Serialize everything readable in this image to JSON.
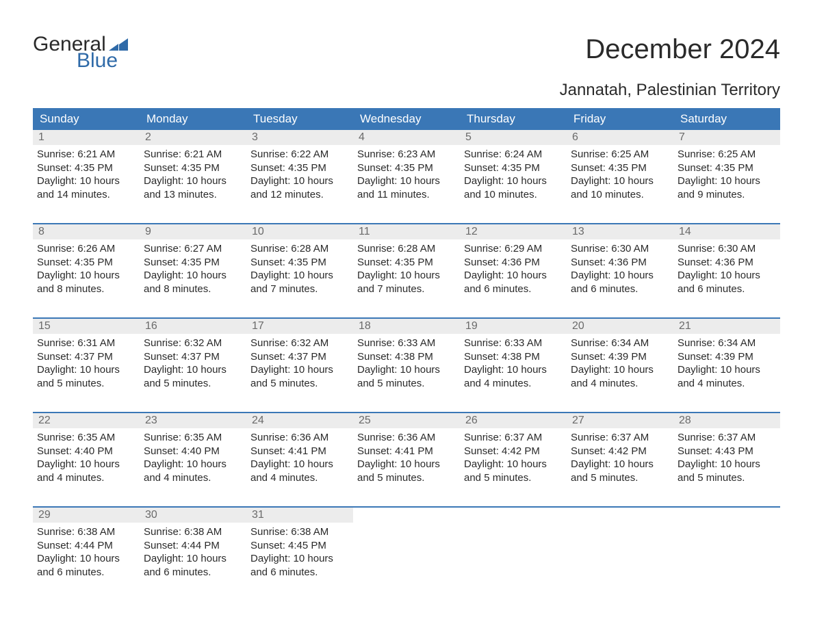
{
  "logo": {
    "line1": "General",
    "line2": "Blue",
    "flag_color": "#2f6aa8"
  },
  "title": "December 2024",
  "location": "Jannatah, Palestinian Territory",
  "colors": {
    "header_bg": "#3a77b6",
    "header_text": "#ffffff",
    "daynum_bg": "#ececec",
    "daynum_text": "#6a6a6a",
    "body_text": "#2a2a2a",
    "week_border": "#3a77b6"
  },
  "day_names": [
    "Sunday",
    "Monday",
    "Tuesday",
    "Wednesday",
    "Thursday",
    "Friday",
    "Saturday"
  ],
  "weeks": [
    [
      {
        "n": "1",
        "sr": "6:21 AM",
        "ss": "4:35 PM",
        "dl": "10 hours and 14 minutes."
      },
      {
        "n": "2",
        "sr": "6:21 AM",
        "ss": "4:35 PM",
        "dl": "10 hours and 13 minutes."
      },
      {
        "n": "3",
        "sr": "6:22 AM",
        "ss": "4:35 PM",
        "dl": "10 hours and 12 minutes."
      },
      {
        "n": "4",
        "sr": "6:23 AM",
        "ss": "4:35 PM",
        "dl": "10 hours and 11 minutes."
      },
      {
        "n": "5",
        "sr": "6:24 AM",
        "ss": "4:35 PM",
        "dl": "10 hours and 10 minutes."
      },
      {
        "n": "6",
        "sr": "6:25 AM",
        "ss": "4:35 PM",
        "dl": "10 hours and 10 minutes."
      },
      {
        "n": "7",
        "sr": "6:25 AM",
        "ss": "4:35 PM",
        "dl": "10 hours and 9 minutes."
      }
    ],
    [
      {
        "n": "8",
        "sr": "6:26 AM",
        "ss": "4:35 PM",
        "dl": "10 hours and 8 minutes."
      },
      {
        "n": "9",
        "sr": "6:27 AM",
        "ss": "4:35 PM",
        "dl": "10 hours and 8 minutes."
      },
      {
        "n": "10",
        "sr": "6:28 AM",
        "ss": "4:35 PM",
        "dl": "10 hours and 7 minutes."
      },
      {
        "n": "11",
        "sr": "6:28 AM",
        "ss": "4:35 PM",
        "dl": "10 hours and 7 minutes."
      },
      {
        "n": "12",
        "sr": "6:29 AM",
        "ss": "4:36 PM",
        "dl": "10 hours and 6 minutes."
      },
      {
        "n": "13",
        "sr": "6:30 AM",
        "ss": "4:36 PM",
        "dl": "10 hours and 6 minutes."
      },
      {
        "n": "14",
        "sr": "6:30 AM",
        "ss": "4:36 PM",
        "dl": "10 hours and 6 minutes."
      }
    ],
    [
      {
        "n": "15",
        "sr": "6:31 AM",
        "ss": "4:37 PM",
        "dl": "10 hours and 5 minutes."
      },
      {
        "n": "16",
        "sr": "6:32 AM",
        "ss": "4:37 PM",
        "dl": "10 hours and 5 minutes."
      },
      {
        "n": "17",
        "sr": "6:32 AM",
        "ss": "4:37 PM",
        "dl": "10 hours and 5 minutes."
      },
      {
        "n": "18",
        "sr": "6:33 AM",
        "ss": "4:38 PM",
        "dl": "10 hours and 5 minutes."
      },
      {
        "n": "19",
        "sr": "6:33 AM",
        "ss": "4:38 PM",
        "dl": "10 hours and 4 minutes."
      },
      {
        "n": "20",
        "sr": "6:34 AM",
        "ss": "4:39 PM",
        "dl": "10 hours and 4 minutes."
      },
      {
        "n": "21",
        "sr": "6:34 AM",
        "ss": "4:39 PM",
        "dl": "10 hours and 4 minutes."
      }
    ],
    [
      {
        "n": "22",
        "sr": "6:35 AM",
        "ss": "4:40 PM",
        "dl": "10 hours and 4 minutes."
      },
      {
        "n": "23",
        "sr": "6:35 AM",
        "ss": "4:40 PM",
        "dl": "10 hours and 4 minutes."
      },
      {
        "n": "24",
        "sr": "6:36 AM",
        "ss": "4:41 PM",
        "dl": "10 hours and 4 minutes."
      },
      {
        "n": "25",
        "sr": "6:36 AM",
        "ss": "4:41 PM",
        "dl": "10 hours and 5 minutes."
      },
      {
        "n": "26",
        "sr": "6:37 AM",
        "ss": "4:42 PM",
        "dl": "10 hours and 5 minutes."
      },
      {
        "n": "27",
        "sr": "6:37 AM",
        "ss": "4:42 PM",
        "dl": "10 hours and 5 minutes."
      },
      {
        "n": "28",
        "sr": "6:37 AM",
        "ss": "4:43 PM",
        "dl": "10 hours and 5 minutes."
      }
    ],
    [
      {
        "n": "29",
        "sr": "6:38 AM",
        "ss": "4:44 PM",
        "dl": "10 hours and 6 minutes."
      },
      {
        "n": "30",
        "sr": "6:38 AM",
        "ss": "4:44 PM",
        "dl": "10 hours and 6 minutes."
      },
      {
        "n": "31",
        "sr": "6:38 AM",
        "ss": "4:45 PM",
        "dl": "10 hours and 6 minutes."
      },
      null,
      null,
      null,
      null
    ]
  ],
  "labels": {
    "sunrise": "Sunrise:",
    "sunset": "Sunset:",
    "daylight": "Daylight:"
  }
}
